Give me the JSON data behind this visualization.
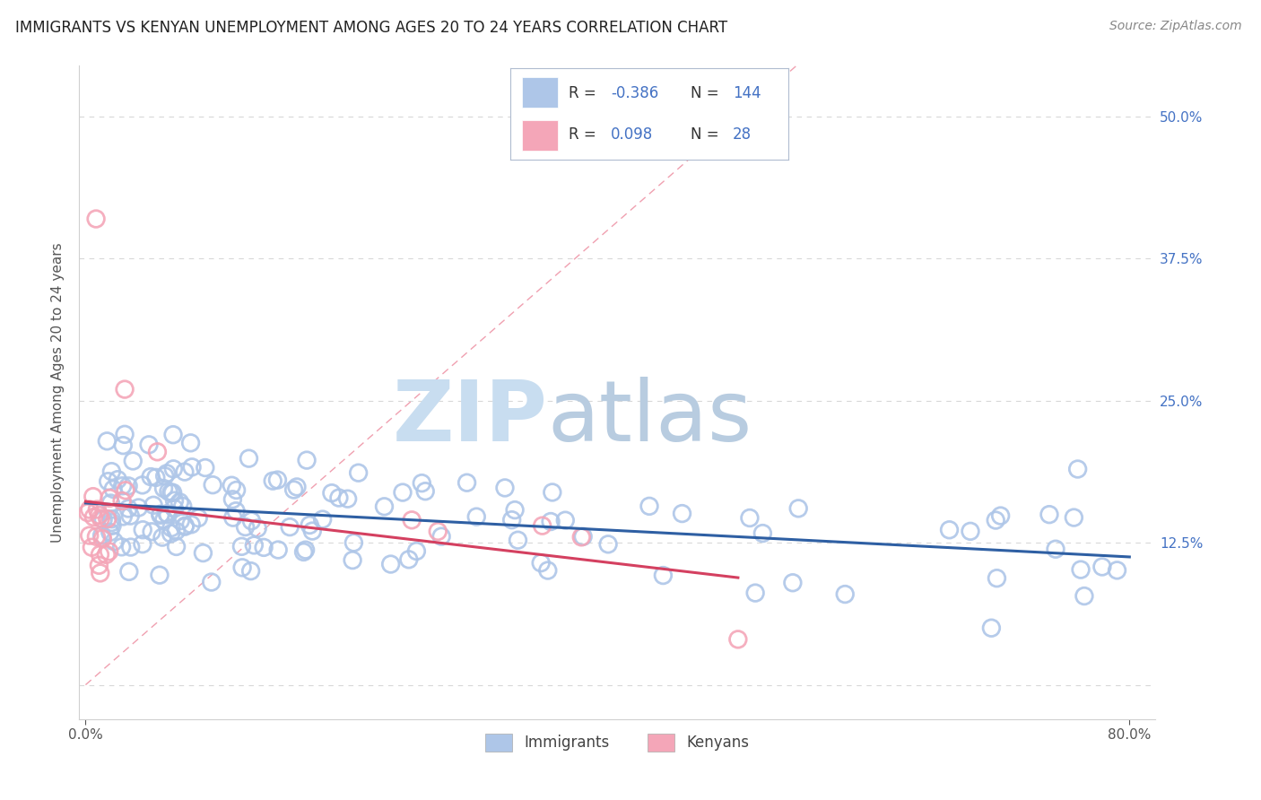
{
  "title": "IMMIGRANTS VS KENYAN UNEMPLOYMENT AMONG AGES 20 TO 24 YEARS CORRELATION CHART",
  "source": "Source: ZipAtlas.com",
  "ylabel": "Unemployment Among Ages 20 to 24 years",
  "xlim": [
    -0.005,
    0.82
  ],
  "ylim": [
    -0.03,
    0.545
  ],
  "yticks": [
    0.0,
    0.125,
    0.25,
    0.375,
    0.5
  ],
  "ytick_labels_right": [
    "",
    "12.5%",
    "25.0%",
    "37.5%",
    "50.0%"
  ],
  "xtick_left_label": "0.0%",
  "xtick_right_label": "80.0%",
  "immigrants_color": "#aec6e8",
  "kenyans_color": "#f4a6b8",
  "trend_immigrants_color": "#2e5fa3",
  "trend_kenyans_color": "#d44060",
  "diag_line_color": "#f0a0b0",
  "grid_color": "#d8d8d8",
  "R_immigrants": -0.386,
  "N_immigrants": 144,
  "R_kenyans": 0.098,
  "N_kenyans": 28,
  "watermark_zip_color": "#c8ddf0",
  "watermark_atlas_color": "#b8cce0",
  "right_label_color": "#4472c4",
  "title_fontsize": 12,
  "source_fontsize": 10,
  "legend_box_color": "#e8eef8",
  "legend_border_color": "#b0bcd0"
}
